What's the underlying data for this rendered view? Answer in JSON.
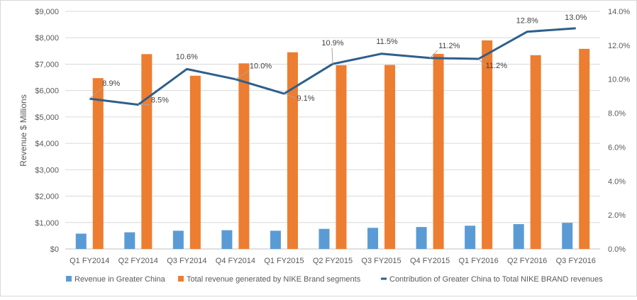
{
  "chart_data": {
    "type": "bar",
    "categories": [
      "Q1 FY2014",
      "Q2 FY2014",
      "Q3 FY2014",
      "Q4 FY2014",
      "Q1 FY2015",
      "Q2 FY2015",
      "Q3 FY2015",
      "Q4 FY2015",
      "Q1 FY2016",
      "Q2 FY2016",
      "Q3 FY2016"
    ],
    "series": [
      {
        "name": "Revenue in Greater China",
        "kind": "bar",
        "axis": "left",
        "color": "#5b9bd5",
        "values": [
          580,
          630,
          690,
          710,
          690,
          760,
          800,
          830,
          880,
          940,
          990
        ]
      },
      {
        "name": "Total revenue generated by NIKE Brand segments",
        "kind": "bar",
        "axis": "left",
        "color": "#ed7d31",
        "values": [
          6470,
          7380,
          6560,
          7030,
          7450,
          6960,
          6970,
          7390,
          7900,
          7340,
          7580
        ]
      },
      {
        "name": "Contribution of Greater China to Total NIKE BRAND revenues",
        "kind": "line",
        "axis": "right",
        "color": "#2e5f8a",
        "values": [
          8.85,
          8.5,
          10.6,
          10.0,
          9.15,
          10.9,
          11.5,
          11.25,
          11.2,
          12.8,
          13.0
        ],
        "labels": [
          "8.9%",
          "8.5%",
          "10.6%",
          "10.0%",
          "9.1%",
          "10.9%",
          "11.5%",
          "11.2%",
          "11.2%",
          "12.8%",
          "13.0%"
        ]
      }
    ],
    "ylabel": "Revenue $ Millions",
    "ylim": [
      0,
      9000
    ],
    "y_ticks": [
      0,
      1000,
      2000,
      3000,
      4000,
      5000,
      6000,
      7000,
      8000,
      9000
    ],
    "y_tick_labels": [
      "$0",
      "$1,000",
      "$2,000",
      "$3,000",
      "$4,000",
      "$5,000",
      "$6,000",
      "$7,000",
      "$8,000",
      "$9,000"
    ],
    "y2lim": [
      0,
      14
    ],
    "y2_ticks": [
      0,
      2,
      4,
      6,
      8,
      10,
      12,
      14
    ],
    "y2_tick_labels": [
      "0.0%",
      "2.0%",
      "4.0%",
      "6.0%",
      "8.0%",
      "10.0%",
      "12.0%",
      "14.0%"
    ],
    "grid": true,
    "legend_placement": "bottom"
  }
}
